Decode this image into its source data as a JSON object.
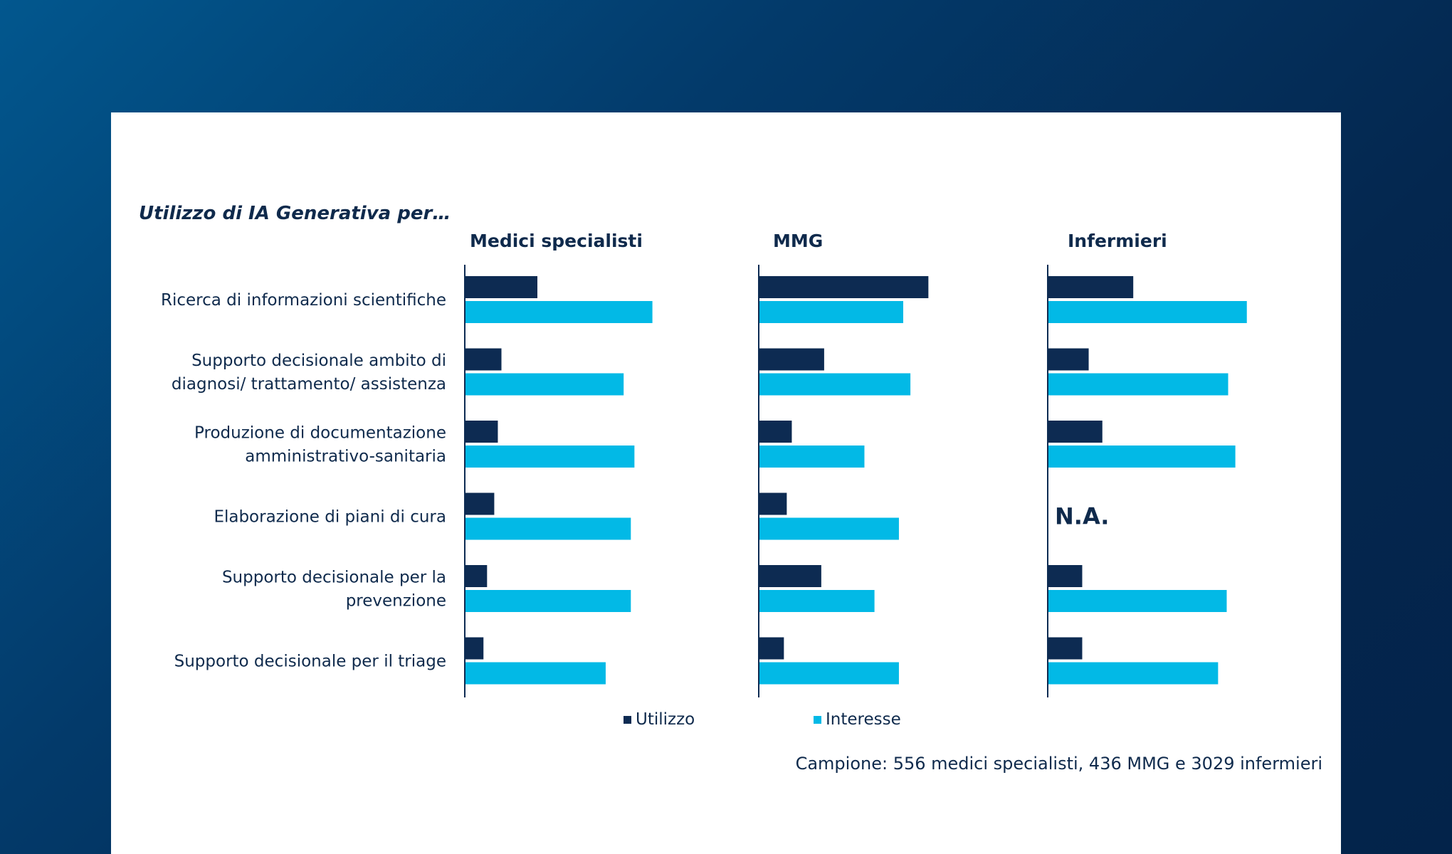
{
  "chart_data": {
    "type": "bar",
    "title": "Utilizzo di IA Generativa per…",
    "categories": [
      [
        "Ricerca di informazioni scientifiche"
      ],
      [
        "Supporto decisionale ambito di",
        "diagnosi/ trattamento/ assistenza"
      ],
      [
        "Produzione di documentazione",
        "amministrativo-sanitaria"
      ],
      [
        "Elaborazione di piani di cura"
      ],
      [
        "Supporto decisionale per la",
        "prevenzione"
      ],
      [
        "Supporto decisionale per il triage"
      ]
    ],
    "panels": [
      {
        "name": "Medici specialisti",
        "series": [
          {
            "name": "Utilizzo",
            "values": [
              10,
              5,
              4.5,
              4,
              3,
              2.5
            ]
          },
          {
            "name": "Interesse",
            "values": [
              26,
              22,
              23.5,
              23,
              23,
              19.5
            ]
          }
        ]
      },
      {
        "name": "MMG",
        "series": [
          {
            "name": "Utilizzo",
            "values": [
              23.5,
              9,
              4.5,
              3.8,
              8.6,
              3.4
            ]
          },
          {
            "name": "Interesse",
            "values": [
              20,
              21,
              14.6,
              19.4,
              16,
              19.4
            ]
          }
        ]
      },
      {
        "name": "Infermieri",
        "series": [
          {
            "name": "Utilizzo",
            "values": [
              11.8,
              5.6,
              7.5,
              null,
              4.7,
              4.7
            ]
          },
          {
            "name": "Interesse",
            "values": [
              27.6,
              25,
              26,
              null,
              24.8,
              23.6
            ]
          }
        ],
        "na_label": "N.A."
      }
    ],
    "legend": [
      "Utilizzo",
      "Interesse"
    ],
    "legend_position": "bottom",
    "grid": false
  },
  "colors": {
    "utilizzo": "#0d2b52",
    "interesse": "#02b9e6",
    "text": "#0f2a4c",
    "axis": "#0d2b52"
  },
  "footnote": "Campione: 556 medici specialisti, 436 MMG e 3029 infermieri"
}
